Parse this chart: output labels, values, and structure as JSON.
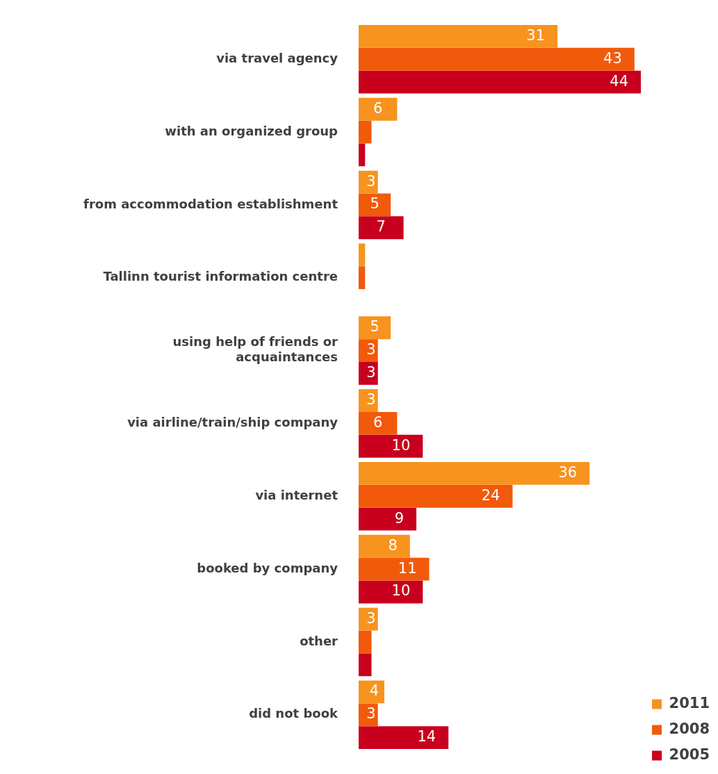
{
  "chart_data": {
    "type": "bar",
    "orientation": "horizontal",
    "categories": [
      "via travel agency",
      "with an organized group",
      "from accommodation establishment",
      "Tallinn tourist information centre",
      "using help of friends or acquaintances",
      "via airline/train/ship company",
      "via internet",
      "booked by company",
      "other",
      "did not book"
    ],
    "series": [
      {
        "name": "2011",
        "color": "#f7931e",
        "values": [
          31,
          6,
          3,
          1,
          5,
          3,
          36,
          8,
          3,
          4
        ],
        "value_labels": [
          "31",
          "6",
          "3",
          null,
          "5",
          "3",
          "36",
          "8",
          "3",
          "4"
        ]
      },
      {
        "name": "2008",
        "color": "#f15a0a",
        "values": [
          43,
          2,
          5,
          1,
          3,
          6,
          24,
          11,
          2,
          3
        ],
        "value_labels": [
          "43",
          null,
          "5",
          null,
          "3",
          "6",
          "24",
          "11",
          null,
          "3"
        ]
      },
      {
        "name": "2005",
        "color": "#c8001e",
        "values": [
          44,
          1,
          7,
          null,
          3,
          10,
          9,
          10,
          2,
          14
        ],
        "value_labels": [
          "44",
          null,
          "7",
          null,
          "3",
          "10",
          "9",
          "10",
          null,
          "14"
        ]
      }
    ],
    "legend": "bottom right"
  }
}
